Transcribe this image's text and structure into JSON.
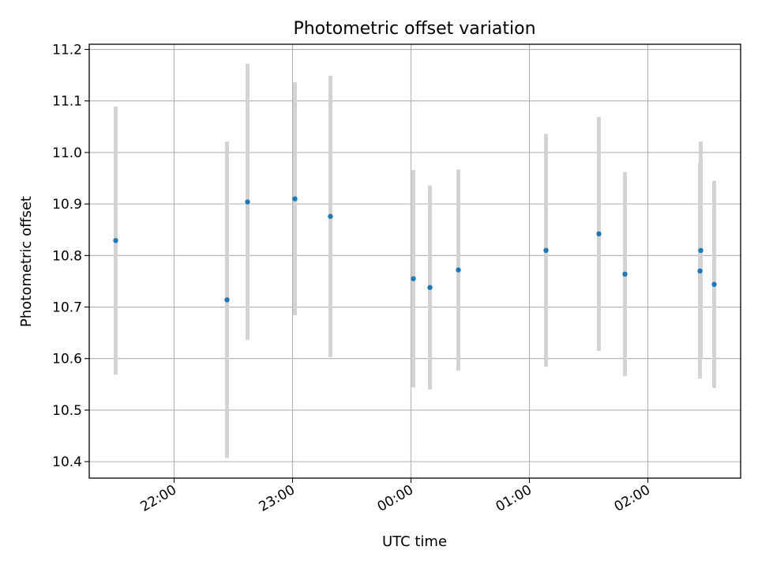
{
  "chart_data": {
    "type": "scatter",
    "title": "Photometric offset variation",
    "xlabel": "UTC time",
    "ylabel": "Photometric offset",
    "xlim": [
      "2022-01-01T21:17:00",
      "2022-01-02T02:47:00"
    ],
    "ylim": [
      10.368,
      11.21
    ],
    "grid": true,
    "x_ticks": [
      {
        "t": "2022-01-01T22:00:00",
        "label": "22:00"
      },
      {
        "t": "2022-01-01T23:00:00",
        "label": "23:00"
      },
      {
        "t": "2022-01-02T00:00:00",
        "label": "00:00"
      },
      {
        "t": "2022-01-02T01:00:00",
        "label": "01:00"
      },
      {
        "t": "2022-01-02T02:00:00",
        "label": "02:00"
      }
    ],
    "y_ticks": [
      {
        "v": 10.4,
        "label": "10.4"
      },
      {
        "v": 10.5,
        "label": "10.5"
      },
      {
        "v": 10.6,
        "label": "10.6"
      },
      {
        "v": 10.7,
        "label": "10.7"
      },
      {
        "v": 10.8,
        "label": "10.8"
      },
      {
        "v": 10.9,
        "label": "10.9"
      },
      {
        "v": 11.0,
        "label": "11.0"
      },
      {
        "v": 11.1,
        "label": "11.1"
      },
      {
        "v": 11.2,
        "label": "11.2"
      }
    ],
    "points": [
      {
        "t": "2022-01-01T21:30:24",
        "y": 10.829,
        "err": 0.26
      },
      {
        "t": "2022-01-01T22:26:48",
        "y": 10.714,
        "err": 0.307
      },
      {
        "t": "2022-01-01T22:37:12",
        "y": 10.904,
        "err": 0.268
      },
      {
        "t": "2022-01-01T23:01:12",
        "y": 10.91,
        "err": 0.226
      },
      {
        "t": "2022-01-01T23:19:12",
        "y": 10.876,
        "err": 0.273
      },
      {
        "t": "2022-01-02T00:01:12",
        "y": 10.755,
        "err": 0.211
      },
      {
        "t": "2022-01-02T00:09:36",
        "y": 10.738,
        "err": 0.198
      },
      {
        "t": "2022-01-02T00:24:00",
        "y": 10.772,
        "err": 0.195
      },
      {
        "t": "2022-01-02T01:08:24",
        "y": 10.81,
        "err": 0.226
      },
      {
        "t": "2022-01-02T01:35:12",
        "y": 10.842,
        "err": 0.227
      },
      {
        "t": "2022-01-02T01:48:24",
        "y": 10.764,
        "err": 0.198
      },
      {
        "t": "2022-01-02T02:26:24",
        "y": 10.77,
        "err": 0.209
      },
      {
        "t": "2022-01-02T02:26:48",
        "y": 10.81,
        "err": 0.211
      },
      {
        "t": "2022-01-02T02:33:36",
        "y": 10.744,
        "err": 0.201
      }
    ],
    "colors": {
      "point": "#1f77b4",
      "errorbar": "#d3d3d3",
      "grid": "#b0b0b0",
      "axes": "#000000"
    }
  }
}
